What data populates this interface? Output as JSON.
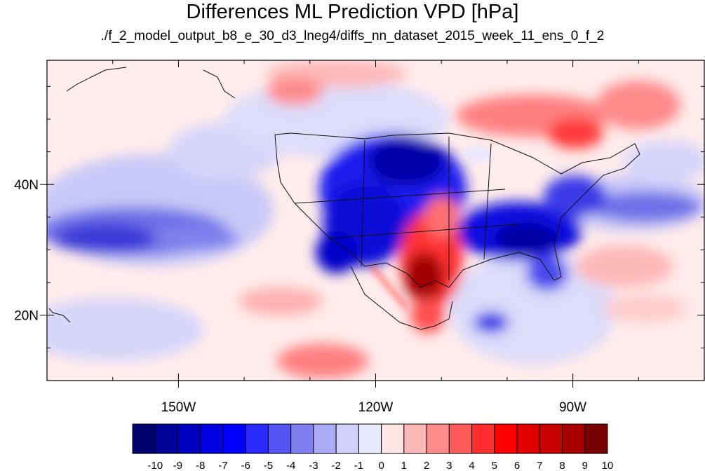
{
  "title": "Differences ML Prediction VPD [hPa]",
  "subtitle": "./f_2_model_output_b8_e_30_d3_lneg4/diffs_nn_dataset_2015_week_11_ens_0_f_2",
  "chart_data": {
    "type": "heatmap",
    "lon_range": [
      -170,
      -70
    ],
    "lat_range": [
      10,
      59
    ],
    "lat_ticks": [
      {
        "value": 40,
        "label": "40N"
      },
      {
        "value": 20,
        "label": "20N"
      }
    ],
    "lon_ticks": [
      {
        "value": -150,
        "label": "150W"
      },
      {
        "value": -120,
        "label": "120W"
      },
      {
        "value": -90,
        "label": "90W"
      }
    ],
    "colorbar": {
      "labels": [
        "-10",
        "-9",
        "-8",
        "-7",
        "-6",
        "-5",
        "-4",
        "-3",
        "-2",
        "-1",
        "0",
        "1",
        "2",
        "3",
        "4",
        "5",
        "6",
        "7",
        "8",
        "9",
        "10"
      ],
      "colors": [
        "#000070",
        "#00009a",
        "#0000c0",
        "#0000e0",
        "#0000ff",
        "#2a2aff",
        "#5555f5",
        "#8080f0",
        "#aaaaf5",
        "#d0d0fa",
        "#e8e8ff",
        "#ffe6e6",
        "#ffb8b8",
        "#ff8a8a",
        "#ff5c5c",
        "#ff2e2e",
        "#ff0000",
        "#e00000",
        "#c80000",
        "#a80000",
        "#780000"
      ]
    }
  }
}
